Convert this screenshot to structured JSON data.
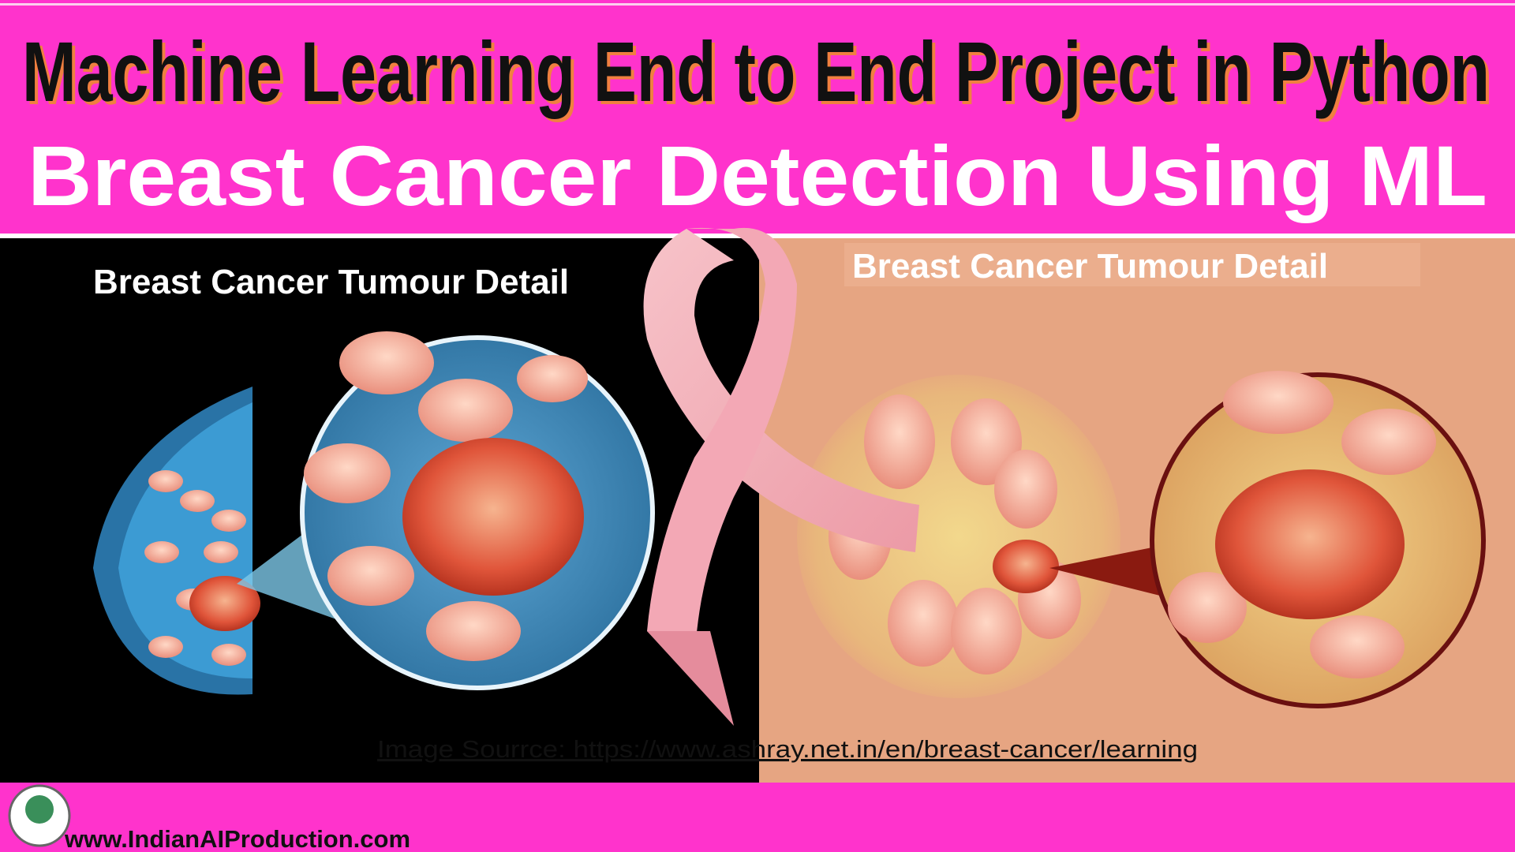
{
  "header": {
    "title": "Machine Learning End to End Project in Python",
    "subtitle": "Breast Cancer Detection Using ML"
  },
  "panels": {
    "left_label": "Breast Cancer Tumour Detail",
    "right_label": "Breast Cancer Tumour Detail"
  },
  "source": "Image Sourrce: https://www.ashray.net.in/en/breast-cancer/learning",
  "footer": {
    "website": "www.IndianAIProduction.com"
  }
}
